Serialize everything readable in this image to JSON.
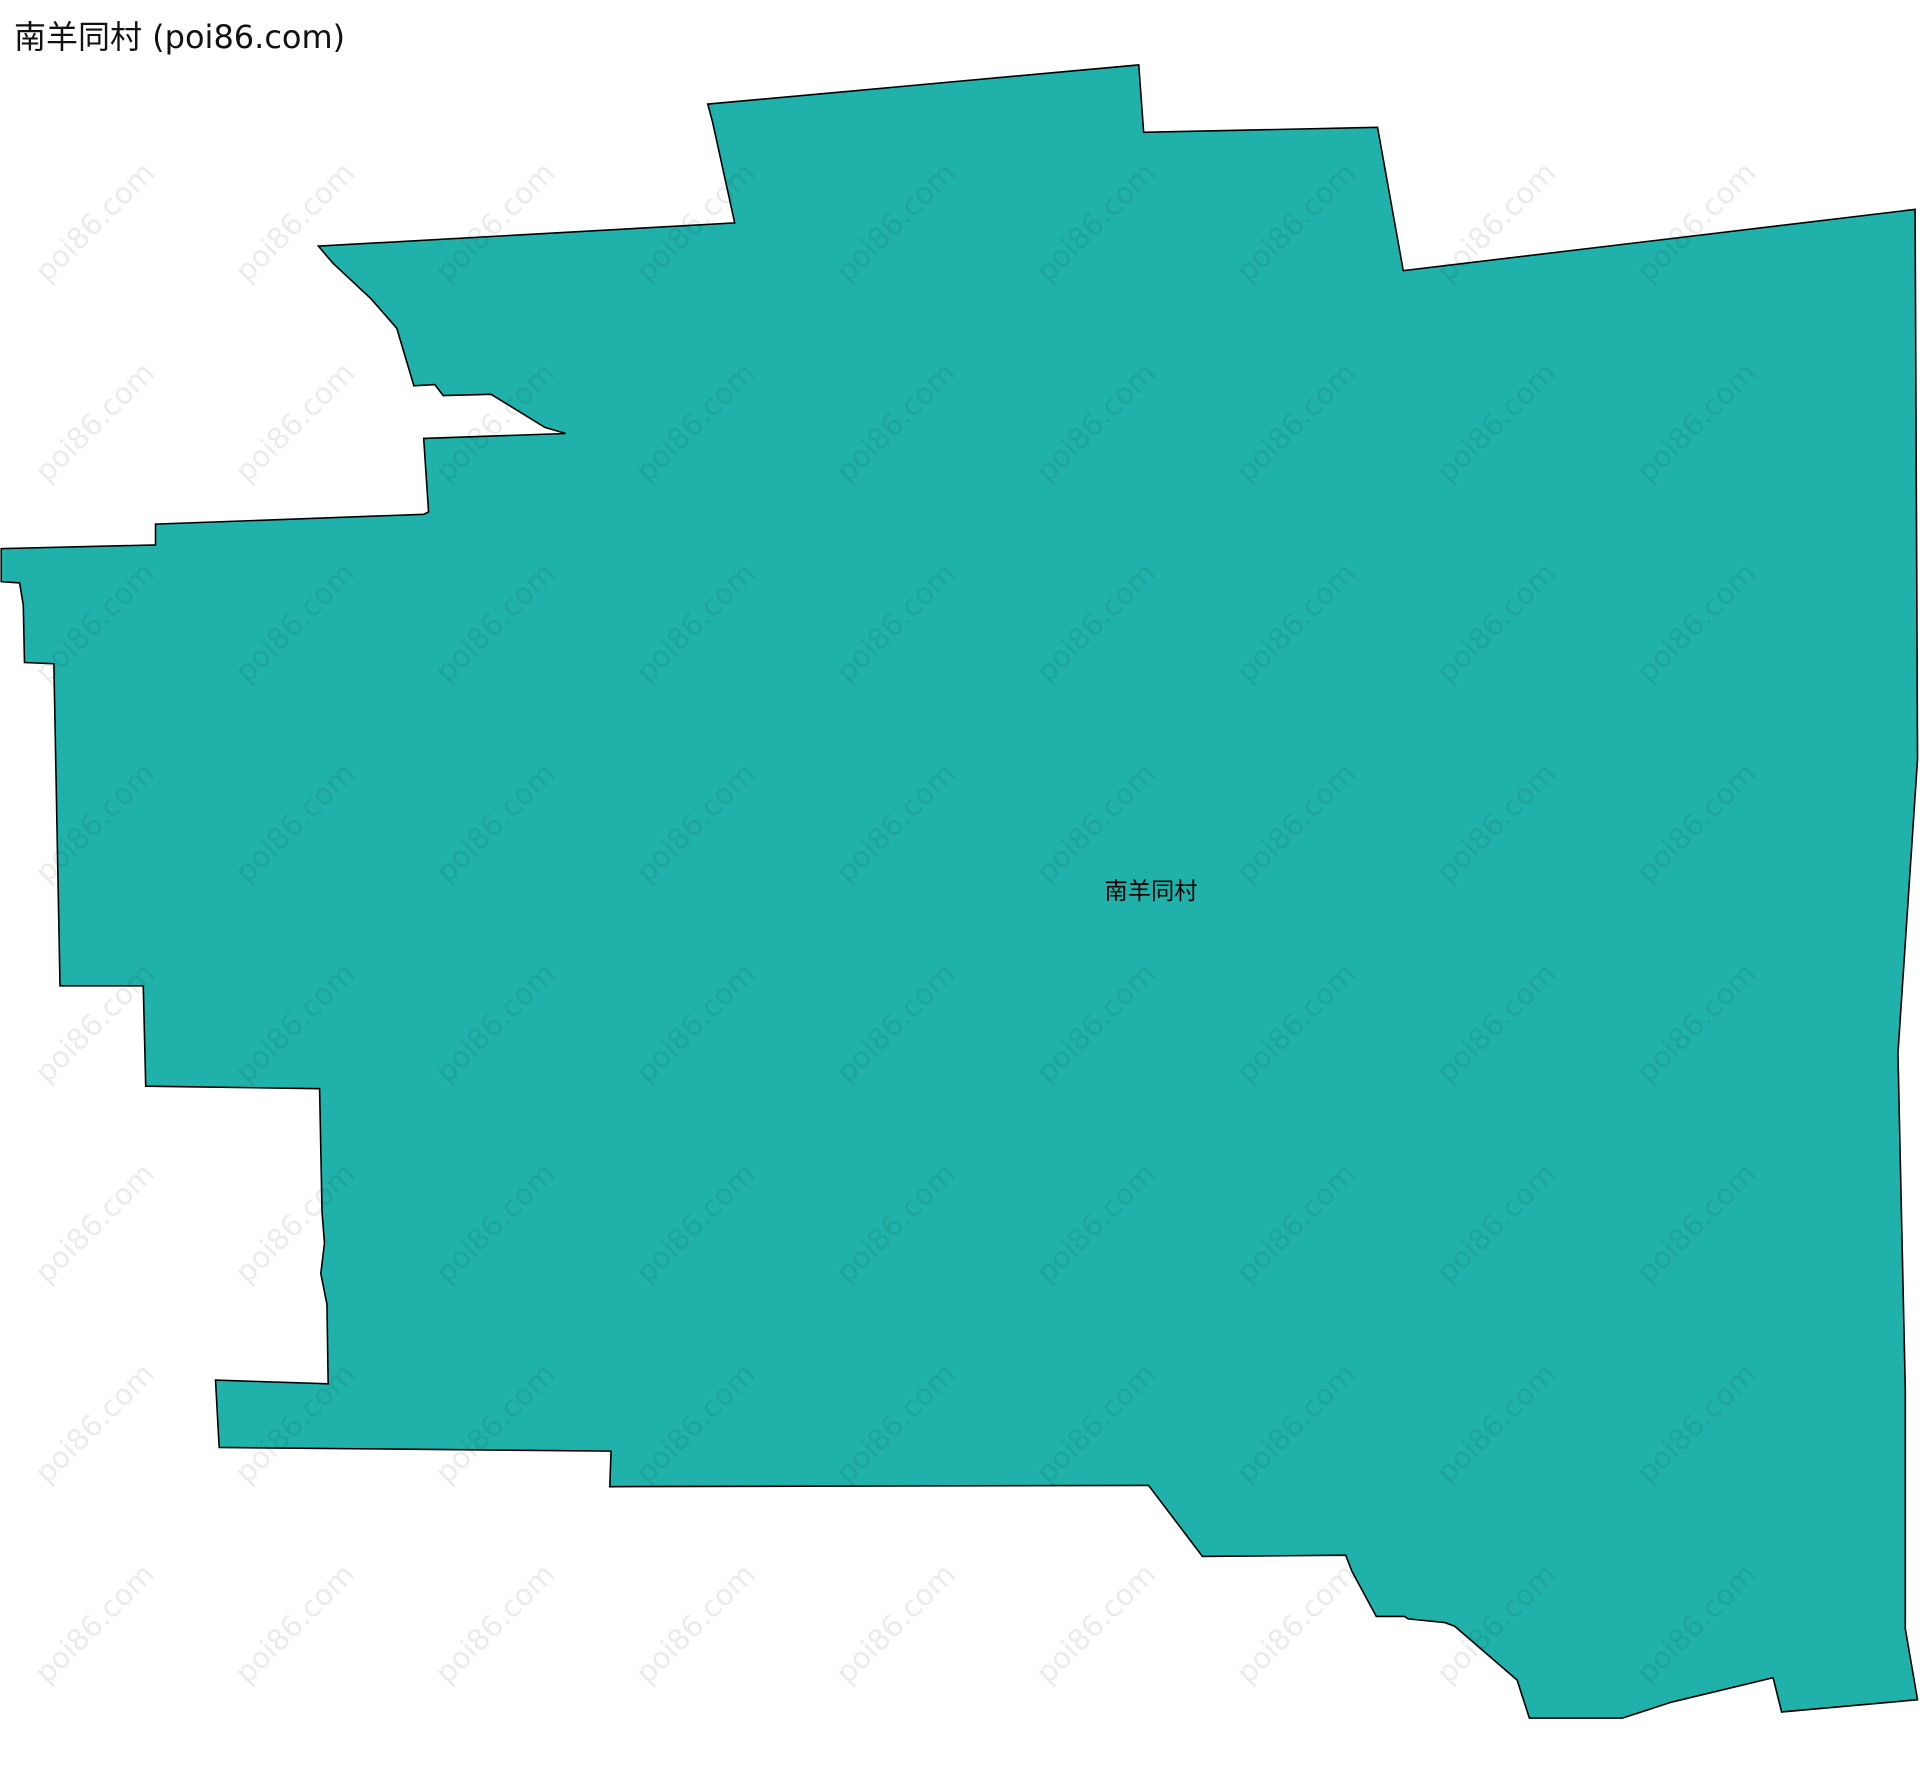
{
  "title": "南羊同村 (poi86.com)",
  "region": {
    "name": "南羊同村",
    "fill_color": "#20b2aa",
    "stroke_color": "#000000"
  },
  "watermark": "poi86.com"
}
